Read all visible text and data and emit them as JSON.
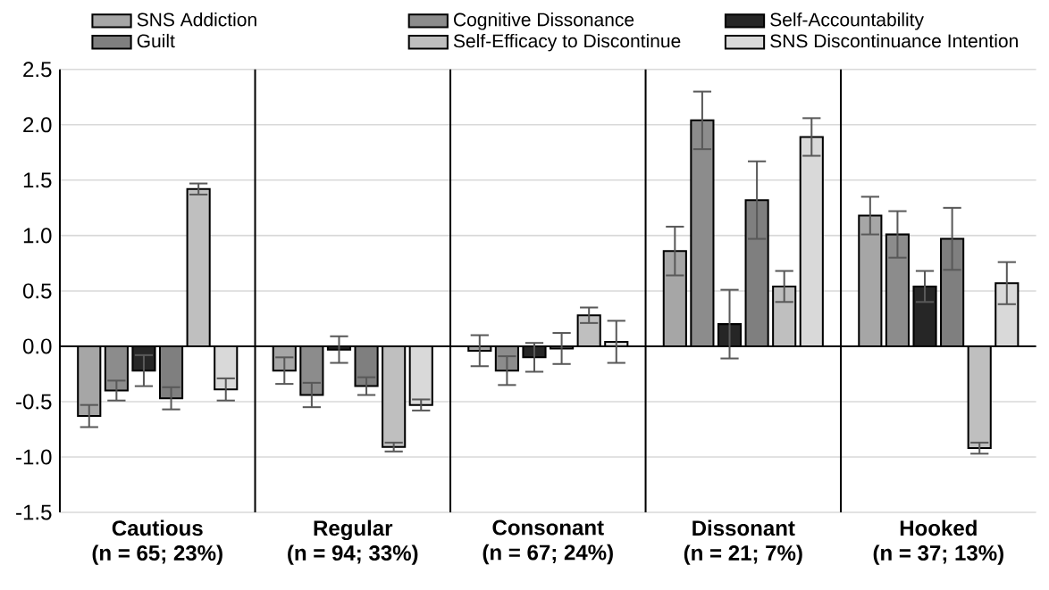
{
  "chart_data": {
    "type": "bar",
    "categories": [
      "Cautious\n(n = 65; 23%)",
      "Regular\n(n = 94; 33%)",
      "Consonant\n(n = 67; 24%)",
      "Dissonant\n(n = 21; 7%)",
      "Hooked\n(n = 37; 13%)"
    ],
    "series": [
      {
        "name": "SNS Addiction",
        "color": "#a6a6a6",
        "values": [
          -0.63,
          -0.22,
          -0.04,
          0.86,
          1.18
        ],
        "errors": [
          0.1,
          0.12,
          0.14,
          0.22,
          0.17
        ]
      },
      {
        "name": "Cognitive Dissonance",
        "color": "#8c8c8c",
        "values": [
          -0.4,
          -0.44,
          -0.22,
          2.04,
          1.01
        ],
        "errors": [
          0.09,
          0.11,
          0.13,
          0.26,
          0.21
        ]
      },
      {
        "name": "Self-Accountability",
        "color": "#262626",
        "values": [
          -0.22,
          -0.03,
          -0.1,
          0.2,
          0.54
        ],
        "errors": [
          0.14,
          0.12,
          0.13,
          0.31,
          0.14
        ]
      },
      {
        "name": "Guilt",
        "color": "#7f7f7f",
        "values": [
          -0.47,
          -0.36,
          -0.02,
          1.32,
          0.97
        ],
        "errors": [
          0.1,
          0.08,
          0.14,
          0.35,
          0.28
        ]
      },
      {
        "name": "Self-Efficacy to Discontinue",
        "color": "#bfbfbf",
        "values": [
          1.42,
          -0.91,
          0.28,
          0.54,
          -0.92
        ],
        "errors": [
          0.05,
          0.04,
          0.07,
          0.14,
          0.05
        ]
      },
      {
        "name": "SNS Discontinuance Intention",
        "color": "#d9d9d9",
        "values": [
          -0.39,
          -0.53,
          0.04,
          1.89,
          0.57
        ],
        "errors": [
          0.1,
          0.05,
          0.19,
          0.17,
          0.19
        ]
      }
    ],
    "ylim": [
      -1.5,
      2.5
    ],
    "yticks": [
      {
        "value": -1.5,
        "label": "-1.5"
      },
      {
        "value": -1.0,
        "label": "-1.0"
      },
      {
        "value": -0.5,
        "label": "-0.5"
      },
      {
        "value": 0,
        "label": "0.0"
      },
      {
        "value": 0.5,
        "label": "0.5"
      },
      {
        "value": 1.0,
        "label": "1.0"
      },
      {
        "value": 1.5,
        "label": "1.5"
      },
      {
        "value": 2.0,
        "label": "2.0"
      },
      {
        "value": 2.5,
        "label": "2.5"
      }
    ],
    "grid": "y",
    "legend": "top"
  }
}
